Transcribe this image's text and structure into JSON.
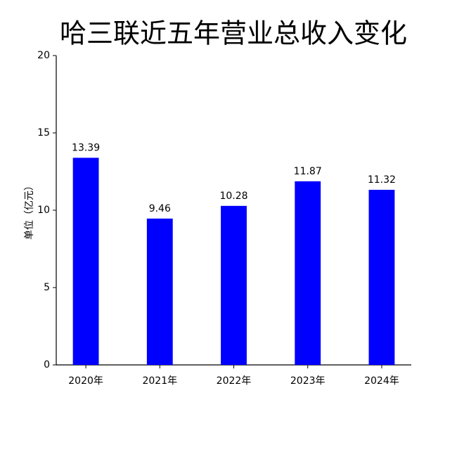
{
  "chart_data": {
    "type": "bar",
    "title": "哈三联近五年营业总收入变化",
    "y_label": "单位（亿元）",
    "categories": [
      "2020年",
      "2021年",
      "2022年",
      "2023年",
      "2024年"
    ],
    "values": [
      13.39,
      9.46,
      10.28,
      11.87,
      11.32
    ],
    "color": "#0000ff",
    "ylim": [
      0,
      20
    ],
    "yticks": [
      0,
      5,
      10,
      15,
      20
    ],
    "grid": false
  }
}
